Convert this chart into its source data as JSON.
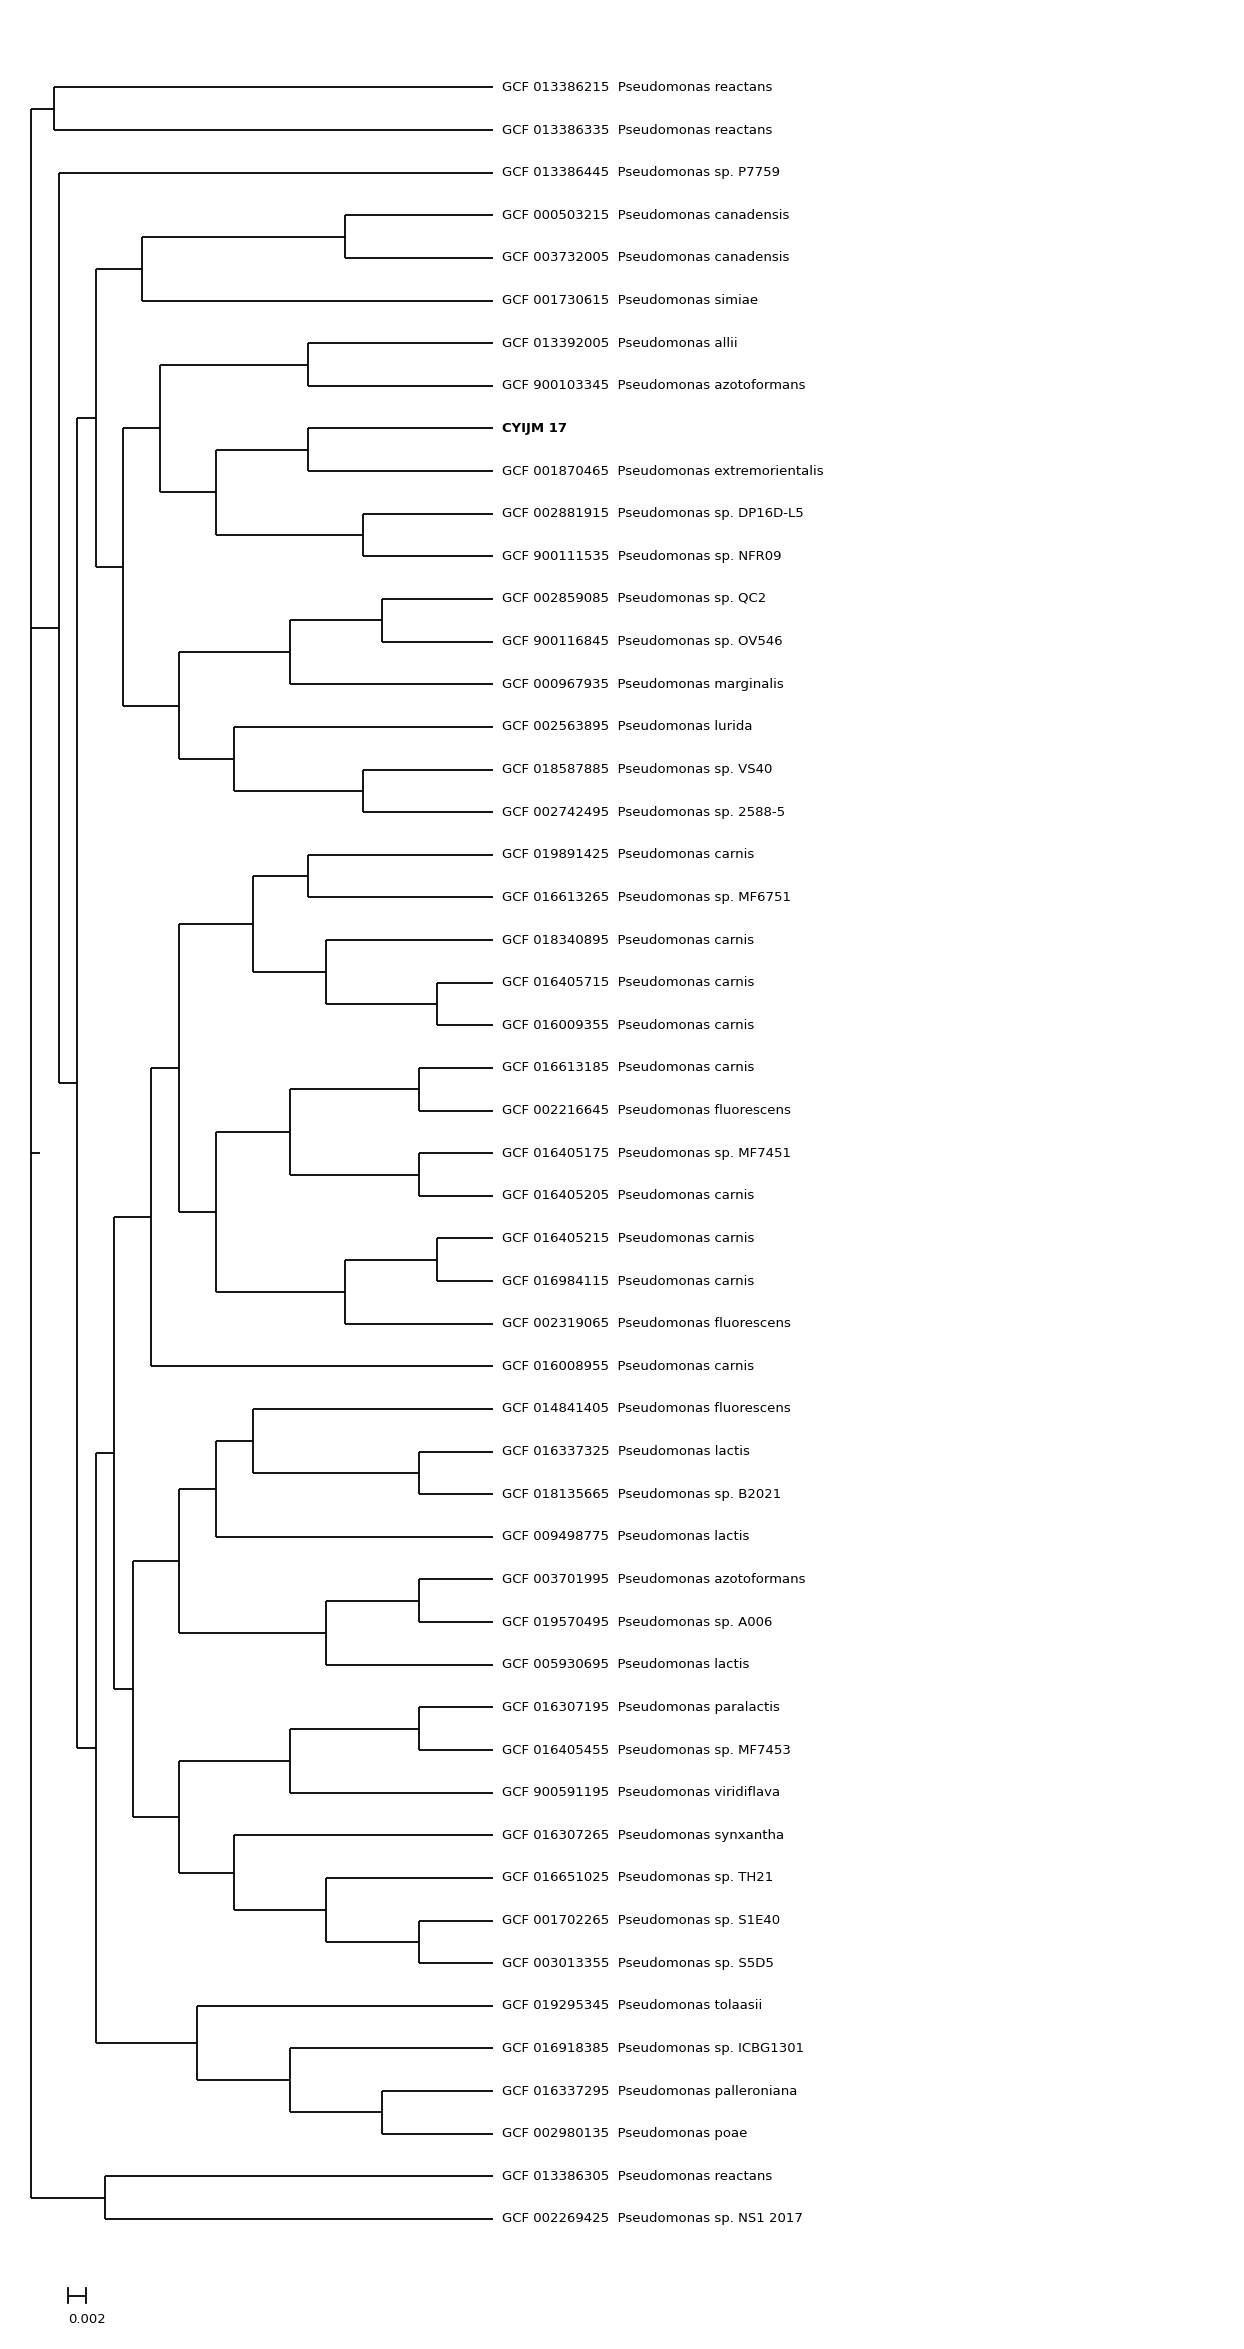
{
  "taxa": [
    "GCF 013386215  Pseudomonas reactans",
    "GCF 013386335  Pseudomonas reactans",
    "GCF 013386445  Pseudomonas sp. P7759",
    "GCF 000503215  Pseudomonas canadensis",
    "GCF 003732005  Pseudomonas canadensis",
    "GCF 001730615  Pseudomonas simiae",
    "GCF 013392005  Pseudomonas allii",
    "GCF 900103345  Pseudomonas azotoformans",
    "CYIJM 17",
    "GCF 001870465  Pseudomonas extremorientalis",
    "GCF 002881915  Pseudomonas sp. DP16D-L5",
    "GCF 900111535  Pseudomonas sp. NFR09",
    "GCF 002859085  Pseudomonas sp. QC2",
    "GCF 900116845  Pseudomonas sp. OV546",
    "GCF 000967935  Pseudomonas marginalis",
    "GCF 002563895  Pseudomonas lurida",
    "GCF 018587885  Pseudomonas sp. VS40",
    "GCF 002742495  Pseudomonas sp. 2588-5",
    "GCF 019891425  Pseudomonas carnis",
    "GCF 016613265  Pseudomonas sp. MF6751",
    "GCF 018340895  Pseudomonas carnis",
    "GCF 016405715  Pseudomonas carnis",
    "GCF 016009355  Pseudomonas carnis",
    "GCF 016613185  Pseudomonas carnis",
    "GCF 002216645  Pseudomonas fluorescens",
    "GCF 016405175  Pseudomonas sp. MF7451",
    "GCF 016405205  Pseudomonas carnis",
    "GCF 016405215  Pseudomonas carnis",
    "GCF 016984115  Pseudomonas carnis",
    "GCF 002319065  Pseudomonas fluorescens",
    "GCF 016008955  Pseudomonas carnis",
    "GCF 014841405  Pseudomonas fluorescens",
    "GCF 016337325  Pseudomonas lactis",
    "GCF 018135665  Pseudomonas sp. B2021",
    "GCF 009498775  Pseudomonas lactis",
    "GCF 003701995  Pseudomonas azotoformans",
    "GCF 019570495  Pseudomonas sp. A006",
    "GCF 005930695  Pseudomonas lactis",
    "GCF 016307195  Pseudomonas paralactis",
    "GCF 016405455  Pseudomonas sp. MF7453",
    "GCF 900591195  Pseudomonas viridiflava",
    "GCF 016307265  Pseudomonas synxantha",
    "GCF 016651025  Pseudomonas sp. TH21",
    "GCF 001702265  Pseudomonas sp. S1E40",
    "GCF 003013355  Pseudomonas sp. S5D5",
    "GCF 019295345  Pseudomonas tolaasii",
    "GCF 016918385  Pseudomonas sp. ICBG1301",
    "GCF 016337295  Pseudomonas palleroniana",
    "GCF 002980135  Pseudomonas poae",
    "GCF 013386305  Pseudomonas reactans",
    "GCF 002269425  Pseudomonas sp. NS1 2017"
  ],
  "bold_label": "CYIJM 17",
  "scale_bar_value": "0.002",
  "bg_color": "#ffffff",
  "line_color": "#000000",
  "font_size": 9.5,
  "lw": 1.3
}
